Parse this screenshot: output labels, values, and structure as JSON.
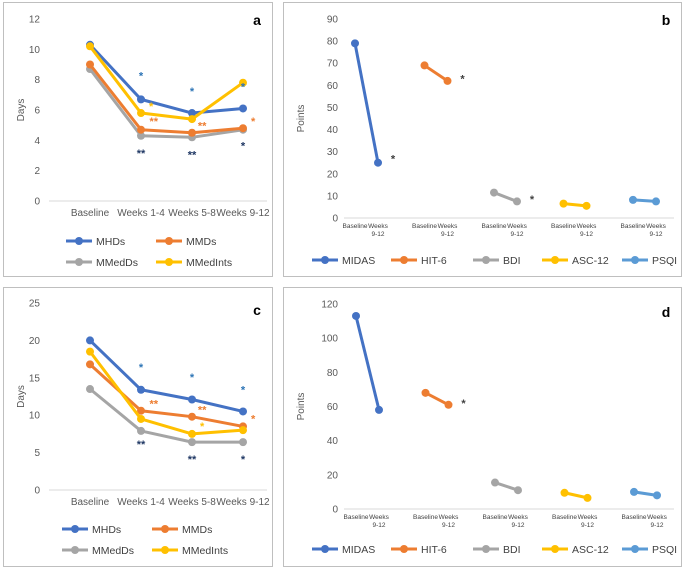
{
  "chart_data": [
    {
      "id": "a",
      "type": "line",
      "panel_label": "a",
      "ylabel": "Days",
      "ylim": [
        0,
        12
      ],
      "yticks": [
        "0",
        "2",
        "4",
        "6",
        "8",
        "10",
        "12"
      ],
      "categories": [
        "Baseline",
        "Weeks 1-4",
        "Weeks 5-8",
        "Weeks 9-12"
      ],
      "series": [
        {
          "name": "MHDs",
          "color": "#4472C4",
          "values": [
            10.3,
            6.7,
            5.8,
            6.1
          ]
        },
        {
          "name": "MMDs",
          "color": "#ED7D31",
          "values": [
            9.0,
            4.7,
            4.5,
            4.8
          ]
        },
        {
          "name": "MMedDs",
          "color": "#A5A5A5",
          "values": [
            8.7,
            4.3,
            4.2,
            4.7
          ]
        },
        {
          "name": "MMedInts",
          "color": "#FFC000",
          "values": [
            10.2,
            5.8,
            5.4,
            7.8
          ]
        }
      ],
      "annotations": [
        {
          "text": "*",
          "color": "#2E75B6",
          "cat": 1,
          "y": 8.0
        },
        {
          "text": "*",
          "color": "#2E75B6",
          "cat": 2,
          "y": 7.0
        },
        {
          "text": "*",
          "color": "#2E75B6",
          "cat": 3,
          "y": 7.3
        },
        {
          "text": "*",
          "color": "#FFC000",
          "cat": 1.2,
          "y": 6.0
        },
        {
          "text": "**",
          "color": "#ED7D31",
          "cat": 1.25,
          "y": 5.0
        },
        {
          "text": "**",
          "color": "#ED7D31",
          "cat": 2.2,
          "y": 4.7
        },
        {
          "text": "*",
          "color": "#ED7D31",
          "cat": 3.2,
          "y": 5.0
        },
        {
          "text": "**",
          "color": "#203864",
          "cat": 1,
          "y": 2.9
        },
        {
          "text": "**",
          "color": "#203864",
          "cat": 2,
          "y": 2.8
        },
        {
          "text": "*",
          "color": "#203864",
          "cat": 3,
          "y": 3.4
        }
      ],
      "legend": [
        "MHDs",
        "MMDs",
        "MMedDs",
        "MMedInts"
      ]
    },
    {
      "id": "b",
      "type": "line",
      "panel_label": "b",
      "ylabel": "Points",
      "ylim": [
        0,
        90
      ],
      "yticks": [
        "0",
        "10",
        "20",
        "30",
        "40",
        "50",
        "60",
        "70",
        "80",
        "90"
      ],
      "category_labels": [
        "Baseline",
        "Weeks",
        "9-12"
      ],
      "series": [
        {
          "name": "MIDAS",
          "color": "#4472C4",
          "values": [
            79,
            25
          ]
        },
        {
          "name": "HIT-6",
          "color": "#ED7D31",
          "values": [
            69,
            62
          ]
        },
        {
          "name": "BDI",
          "color": "#A5A5A5",
          "values": [
            11.5,
            7.5
          ]
        },
        {
          "name": "ASC-12",
          "color": "#FFC000",
          "values": [
            6.5,
            5.5
          ]
        },
        {
          "name": "PSQI",
          "color": "#5B9BD5",
          "values": [
            8.2,
            7.5
          ]
        }
      ],
      "annotations": [
        {
          "text": "*",
          "color": "#404040",
          "group": 0,
          "y": 27
        },
        {
          "text": "*",
          "color": "#404040",
          "group": 1,
          "y": 63
        },
        {
          "text": "*",
          "color": "#404040",
          "group": 2,
          "y": 8.5
        }
      ],
      "legend": [
        "MIDAS",
        "HIT-6",
        "BDI",
        "ASC-12",
        "PSQI"
      ]
    },
    {
      "id": "c",
      "type": "line",
      "panel_label": "c",
      "ylabel": "Days",
      "ylim": [
        0,
        25
      ],
      "yticks": [
        "0",
        "5",
        "10",
        "15",
        "20",
        "25"
      ],
      "categories": [
        "Baseline",
        "Weeks 1-4",
        "Weeks 5-8",
        "Weeks 9-12"
      ],
      "series": [
        {
          "name": "MHDs",
          "color": "#4472C4",
          "values": [
            20.0,
            13.4,
            12.1,
            10.5
          ]
        },
        {
          "name": "MMDs",
          "color": "#ED7D31",
          "values": [
            16.8,
            10.6,
            9.8,
            8.5
          ]
        },
        {
          "name": "MMedDs",
          "color": "#A5A5A5",
          "values": [
            13.5,
            7.9,
            6.4,
            6.4
          ]
        },
        {
          "name": "MMedInts",
          "color": "#FFC000",
          "values": [
            18.5,
            9.5,
            7.5,
            8.0
          ]
        }
      ],
      "annotations": [
        {
          "text": "*",
          "color": "#2E75B6",
          "cat": 1,
          "y": 15.9
        },
        {
          "text": "*",
          "color": "#2E75B6",
          "cat": 2,
          "y": 14.6
        },
        {
          "text": "*",
          "color": "#2E75B6",
          "cat": 3,
          "y": 12.9
        },
        {
          "text": "**",
          "color": "#ED7D31",
          "cat": 1.25,
          "y": 11.0
        },
        {
          "text": "**",
          "color": "#ED7D31",
          "cat": 2.2,
          "y": 10.2
        },
        {
          "text": "*",
          "color": "#ED7D31",
          "cat": 3.2,
          "y": 9.0
        },
        {
          "text": "*",
          "color": "#FFC000",
          "cat": 2.2,
          "y": 8.0
        },
        {
          "text": "**",
          "color": "#203864",
          "cat": 1,
          "y": 5.6
        },
        {
          "text": "**",
          "color": "#203864",
          "cat": 2,
          "y": 3.6
        },
        {
          "text": "*",
          "color": "#203864",
          "cat": 3,
          "y": 3.6
        }
      ],
      "legend": [
        "MHDs",
        "MMDs",
        "MMedDs",
        "MMedInts"
      ]
    },
    {
      "id": "d",
      "type": "line",
      "panel_label": "d",
      "ylabel": "Points",
      "ylim": [
        0,
        120
      ],
      "yticks": [
        "0",
        "20",
        "40",
        "60",
        "80",
        "100",
        "120"
      ],
      "category_labels": [
        "Baseline",
        "Weeks",
        "9-12"
      ],
      "series": [
        {
          "name": "MIDAS",
          "color": "#4472C4",
          "values": [
            113,
            58
          ]
        },
        {
          "name": "HIT-6",
          "color": "#ED7D31",
          "values": [
            68,
            61
          ]
        },
        {
          "name": "BDI",
          "color": "#A5A5A5",
          "values": [
            15.5,
            11
          ]
        },
        {
          "name": "ASC-12",
          "color": "#FFC000",
          "values": [
            9.5,
            6.5
          ]
        },
        {
          "name": "PSQI",
          "color": "#5B9BD5",
          "values": [
            10,
            8
          ]
        }
      ],
      "annotations": [
        {
          "text": "*",
          "color": "#404040",
          "group": 1,
          "y": 62
        }
      ],
      "legend": [
        "MIDAS",
        "HIT-6",
        "BDI",
        "ASC-12",
        "PSQI"
      ]
    }
  ]
}
